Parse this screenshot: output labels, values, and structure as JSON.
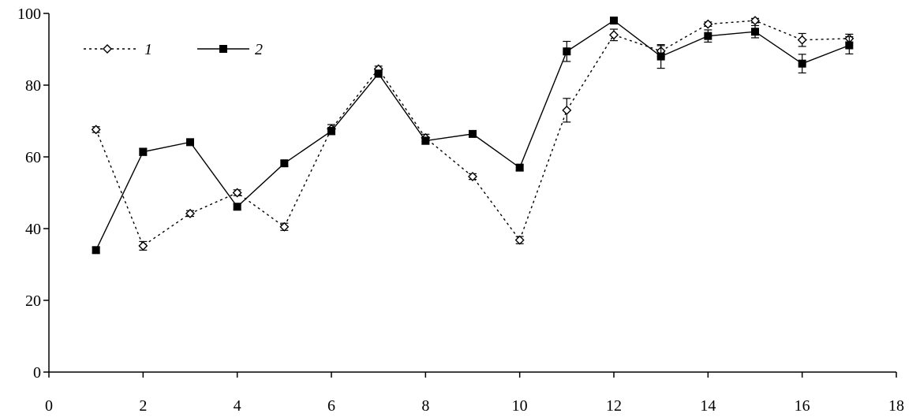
{
  "chart_data": {
    "type": "line",
    "title": "",
    "xlabel": "",
    "ylabel": "",
    "xlim": [
      0,
      18
    ],
    "ylim": [
      0,
      100
    ],
    "x_ticks": [
      "0",
      "2",
      "4",
      "6",
      "8",
      "10",
      "12",
      "14",
      "16",
      "18"
    ],
    "y_ticks": [
      "0",
      "20",
      "40",
      "60",
      "80",
      "100"
    ],
    "grid": false,
    "legend_position": "top-left",
    "series": [
      {
        "name": "1",
        "marker": "open-diamond",
        "line_style": "dotted",
        "color": "#000000",
        "x": [
          1,
          2,
          3,
          4,
          5,
          6,
          7,
          8,
          9,
          10,
          11,
          12,
          13,
          14,
          15,
          16,
          17
        ],
        "y": [
          67.6,
          35.2,
          44.2,
          50.0,
          40.5,
          67.8,
          84.5,
          65.3,
          54.5,
          36.8,
          73.0,
          94.0,
          89.5,
          97.0,
          98.0,
          92.6,
          93.0
        ],
        "err": [
          0.8,
          1.2,
          0.8,
          0.8,
          1.0,
          1.2,
          0.8,
          1.0,
          0.8,
          1.0,
          3.3,
          1.6,
          1.5,
          0.6,
          0.6,
          1.8,
          1.2
        ]
      },
      {
        "name": "2",
        "marker": "filled-square",
        "line_style": "solid",
        "color": "#000000",
        "x": [
          1,
          2,
          3,
          4,
          5,
          6,
          7,
          8,
          9,
          10,
          11,
          12,
          13,
          14,
          15,
          16,
          17
        ],
        "y": [
          34.0,
          61.4,
          64.1,
          46.1,
          58.2,
          67.2,
          83.2,
          64.5,
          66.4,
          57.0,
          89.4,
          98.0,
          88.0,
          93.7,
          94.9,
          86.0,
          91.1
        ],
        "err": [
          0.8,
          1.0,
          0.8,
          0.8,
          0.8,
          1.0,
          1.0,
          1.0,
          0.6,
          0.8,
          2.8,
          0.8,
          3.3,
          1.7,
          1.7,
          2.6,
          2.4
        ]
      }
    ]
  }
}
